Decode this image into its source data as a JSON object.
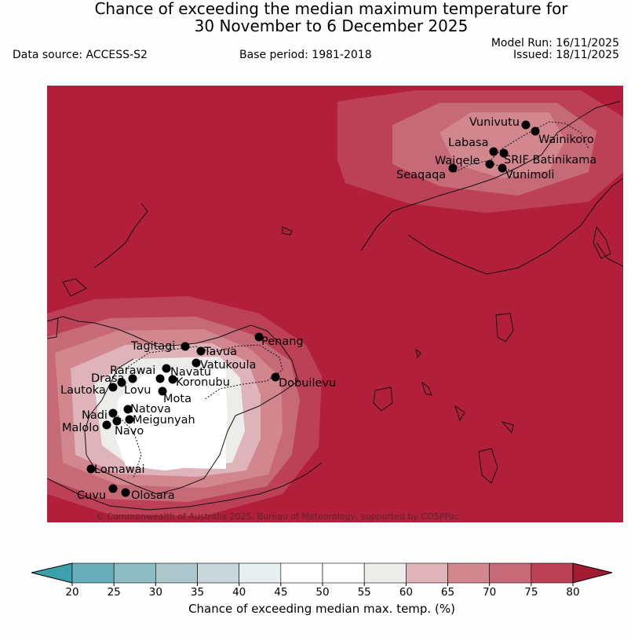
{
  "header": {
    "title_line1": "Chance of exceeding the median maximum temperature for",
    "title_line2": "30 November to 6 December 2025",
    "data_source": "Data source: ACCESS-S2",
    "base_period": "Base period: 1981-2018",
    "model_run": "Model Run: 16/11/2025",
    "issued": "Issued: 18/11/2025"
  },
  "map": {
    "copyright": "© Commonwealth of Australia 2025, Bureau of Meteorology, supported by COSPPac",
    "background_color": "#b21f3a",
    "locations": [
      {
        "name": "Vunivutu"
      },
      {
        "name": "Wainikoro"
      },
      {
        "name": "Labasa"
      },
      {
        "name": "SRIF Batinikama"
      },
      {
        "name": "Waiqele"
      },
      {
        "name": "Seaqaqa"
      },
      {
        "name": "Vunimoli"
      },
      {
        "name": "Tagitagi"
      },
      {
        "name": "Tavua"
      },
      {
        "name": "Penang"
      },
      {
        "name": "Vatukoula"
      },
      {
        "name": "Rarawai"
      },
      {
        "name": "Navatu"
      },
      {
        "name": "Koronubu"
      },
      {
        "name": "Drasa"
      },
      {
        "name": "Lautoka"
      },
      {
        "name": "Lovu"
      },
      {
        "name": "Dobuilevu"
      },
      {
        "name": "Mota"
      },
      {
        "name": "Natova"
      },
      {
        "name": "Nadi"
      },
      {
        "name": "Meigunyah"
      },
      {
        "name": "Malolo"
      },
      {
        "name": "Navo"
      },
      {
        "name": "Lomawai"
      },
      {
        "name": "Cuvu"
      },
      {
        "name": "Olosara"
      }
    ]
  },
  "legend": {
    "label": "Chance of exceeding median max. temp. (%)",
    "ticks": [
      "20",
      "25",
      "30",
      "35",
      "40",
      "45",
      "50",
      "55",
      "60",
      "65",
      "70",
      "75",
      "80"
    ],
    "colors": [
      "#6aaebc",
      "#8ebbc4",
      "#acc7cc",
      "#c9d6da",
      "#e9eef0",
      "#ffffff",
      "#ffffff",
      "#ececea",
      "#dfb3ba",
      "#d2878f",
      "#c66a78",
      "#bc4157"
    ],
    "low_extend_color": "#3c9fac",
    "high_extend_color": "#a31a33"
  }
}
